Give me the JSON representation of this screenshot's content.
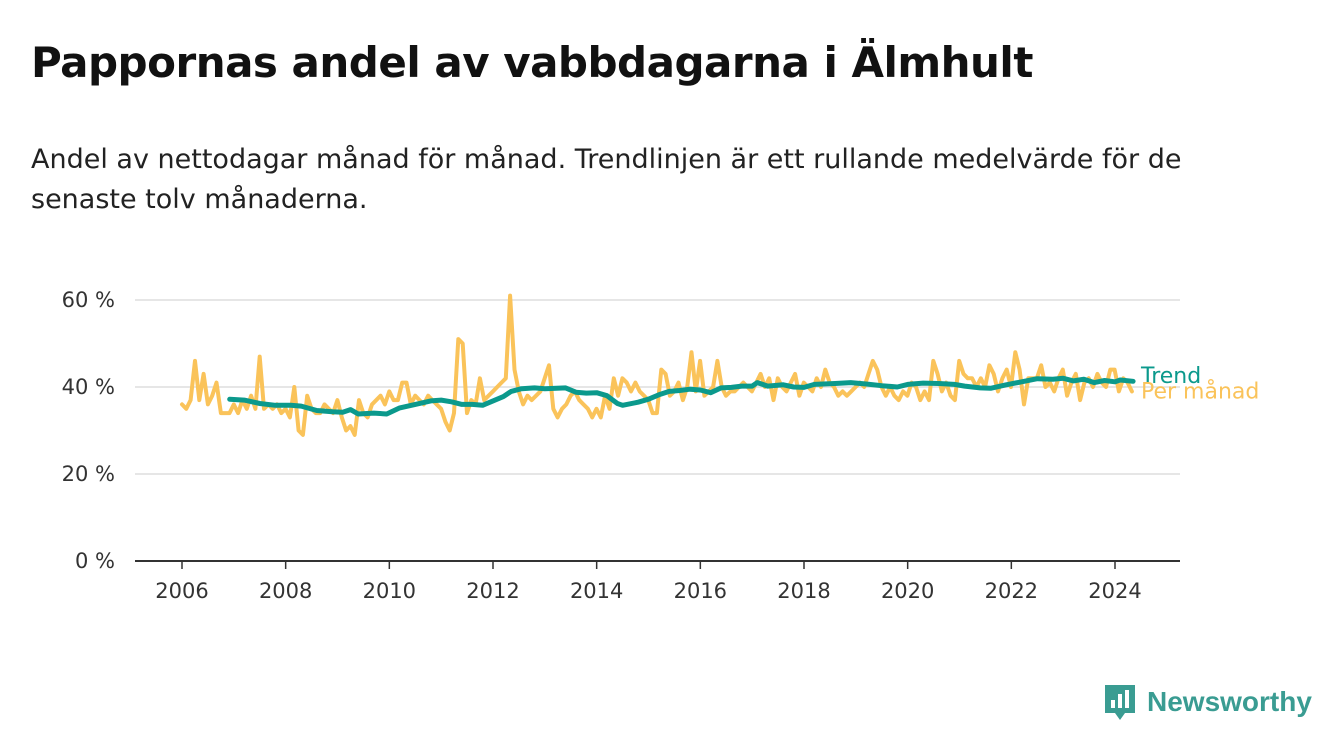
{
  "title": "Pappornas andel av vabbdagarna i Älmhult",
  "subtitle": "Andel av nettodagar månad för månad. Trendlinjen är ett rullande medelvärde för de senaste tolv månaderna.",
  "brand": {
    "name": "Newsworthy",
    "icon": "newsworthy-logo-icon",
    "color": "#3a9c92"
  },
  "colors": {
    "monthly": "#fac35a",
    "trend": "#0b998c",
    "grid": "#dddddd",
    "axis": "#333333"
  },
  "chart_data": {
    "type": "line",
    "title": "Pappornas andel av vabbdagarna i Älmhult",
    "x_unit": "year (decimal)",
    "xlim": [
      2006,
      2024.7
    ],
    "ylim": [
      0,
      60
    ],
    "x_ticks": [
      2006,
      2008,
      2010,
      2012,
      2014,
      2016,
      2018,
      2020,
      2022,
      2024
    ],
    "x_tick_labels": [
      "2006",
      "2008",
      "2010",
      "2012",
      "2014",
      "2016",
      "2018",
      "2020",
      "2022",
      "2024"
    ],
    "y_ticks": [
      0,
      20,
      40,
      60
    ],
    "y_tick_labels": [
      "0 %",
      "20 %",
      "40 %",
      "60 %"
    ],
    "grid": true,
    "legend": "inline labels at right end of lines",
    "series": [
      {
        "name": "Per månad",
        "color": "#fac35a",
        "x_start": 2006.0,
        "x_step": 0.0833,
        "values": [
          36,
          35,
          37,
          46,
          37,
          43,
          36,
          38,
          41,
          34,
          34,
          34,
          36,
          34,
          37,
          35,
          38,
          35,
          47,
          35,
          36,
          35,
          36,
          34,
          35,
          33,
          40,
          30,
          29,
          38,
          35,
          34,
          34,
          36,
          35,
          34,
          37,
          33,
          30,
          31,
          29,
          37,
          34,
          33,
          36,
          37,
          38,
          36,
          39,
          37,
          37,
          41,
          41,
          36,
          38,
          37,
          36,
          38,
          37,
          36,
          35,
          32,
          30,
          34,
          51,
          50,
          34,
          37,
          36,
          42,
          37,
          38,
          39,
          40,
          41,
          42,
          61,
          44,
          39,
          36,
          38,
          37,
          38,
          39,
          42,
          45,
          35,
          33,
          35,
          36,
          38,
          39,
          37,
          36,
          35,
          33,
          35,
          33,
          38,
          35,
          42,
          38,
          42,
          41,
          39,
          41,
          39,
          38,
          37,
          34,
          34,
          44,
          43,
          38,
          39,
          41,
          37,
          40,
          48,
          39,
          46,
          38,
          39,
          40,
          46,
          40,
          38,
          39,
          39,
          40,
          41,
          40,
          39,
          41,
          43,
          40,
          42,
          37,
          42,
          40,
          39,
          41,
          43,
          38,
          41,
          40,
          39,
          42,
          40,
          44,
          41,
          40,
          38,
          39,
          38,
          39,
          40,
          41,
          40,
          43,
          46,
          44,
          40,
          38,
          40,
          38,
          37,
          39,
          38,
          41,
          40,
          37,
          39,
          37,
          46,
          43,
          39,
          41,
          38,
          37,
          46,
          43,
          42,
          42,
          40,
          42,
          40,
          45,
          43,
          39,
          42,
          44,
          40,
          48,
          44,
          36,
          42,
          42,
          42,
          45,
          40,
          41,
          39,
          42,
          44,
          38,
          41,
          43,
          37,
          41,
          42,
          40,
          43,
          41,
          40,
          44,
          44,
          39,
          42,
          41,
          39
        ]
      },
      {
        "name": "Trend",
        "color": "#0b998c",
        "points": [
          [
            2006.92,
            37.2
          ],
          [
            2007.2,
            37.0
          ],
          [
            2007.5,
            36.2
          ],
          [
            2007.8,
            35.8
          ],
          [
            2008.1,
            35.8
          ],
          [
            2008.3,
            35.6
          ],
          [
            2008.6,
            34.6
          ],
          [
            2008.9,
            34.3
          ],
          [
            2009.1,
            34.2
          ],
          [
            2009.25,
            34.8
          ],
          [
            2009.4,
            33.8
          ],
          [
            2009.7,
            34.0
          ],
          [
            2009.95,
            33.8
          ],
          [
            2010.2,
            35.2
          ],
          [
            2010.5,
            36.0
          ],
          [
            2010.8,
            36.8
          ],
          [
            2011.0,
            37.0
          ],
          [
            2011.2,
            36.6
          ],
          [
            2011.4,
            36.0
          ],
          [
            2011.6,
            36.0
          ],
          [
            2011.8,
            35.8
          ],
          [
            2012.0,
            36.8
          ],
          [
            2012.2,
            37.8
          ],
          [
            2012.35,
            39.0
          ],
          [
            2012.55,
            39.6
          ],
          [
            2012.8,
            39.8
          ],
          [
            2013.0,
            39.6
          ],
          [
            2013.4,
            39.8
          ],
          [
            2013.6,
            38.8
          ],
          [
            2013.8,
            38.6
          ],
          [
            2014.0,
            38.7
          ],
          [
            2014.2,
            38.0
          ],
          [
            2014.4,
            36.2
          ],
          [
            2014.5,
            35.8
          ],
          [
            2014.8,
            36.5
          ],
          [
            2015.0,
            37.2
          ],
          [
            2015.2,
            38.2
          ],
          [
            2015.4,
            39.0
          ],
          [
            2015.6,
            39.2
          ],
          [
            2015.8,
            39.5
          ],
          [
            2016.0,
            39.3
          ],
          [
            2016.2,
            38.7
          ],
          [
            2016.4,
            39.8
          ],
          [
            2016.6,
            39.9
          ],
          [
            2016.8,
            40.2
          ],
          [
            2017.0,
            40.2
          ],
          [
            2017.1,
            41.0
          ],
          [
            2017.3,
            40.2
          ],
          [
            2017.6,
            40.5
          ],
          [
            2017.8,
            40.0
          ],
          [
            2018.0,
            39.9
          ],
          [
            2018.2,
            40.6
          ],
          [
            2018.6,
            40.8
          ],
          [
            2018.9,
            41.0
          ],
          [
            2019.2,
            40.7
          ],
          [
            2019.5,
            40.3
          ],
          [
            2019.8,
            40.0
          ],
          [
            2020.0,
            40.6
          ],
          [
            2020.3,
            40.9
          ],
          [
            2020.6,
            40.8
          ],
          [
            2020.9,
            40.6
          ],
          [
            2021.1,
            40.2
          ],
          [
            2021.4,
            39.8
          ],
          [
            2021.6,
            39.7
          ],
          [
            2021.9,
            40.5
          ],
          [
            2022.2,
            41.2
          ],
          [
            2022.5,
            41.9
          ],
          [
            2022.8,
            41.8
          ],
          [
            2023.0,
            42.0
          ],
          [
            2023.2,
            41.4
          ],
          [
            2023.4,
            41.8
          ],
          [
            2023.6,
            41.0
          ],
          [
            2023.8,
            41.5
          ],
          [
            2024.0,
            41.2
          ],
          [
            2024.1,
            41.6
          ],
          [
            2024.35,
            41.3
          ]
        ]
      }
    ]
  }
}
